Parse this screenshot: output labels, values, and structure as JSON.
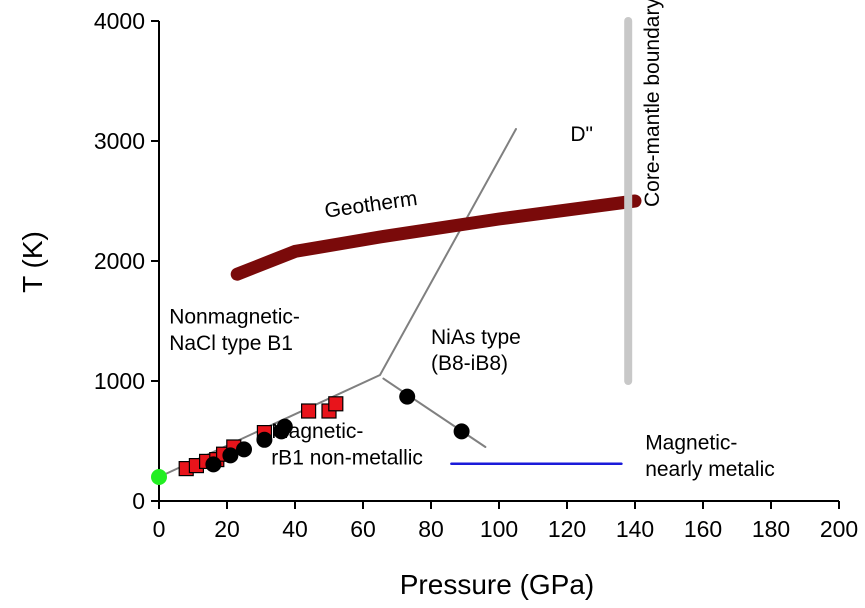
{
  "chart_data": {
    "type": "scatter",
    "title": "",
    "xlabel": "Pressure (GPa)",
    "ylabel": "T (K)",
    "xlim": [
      0,
      200
    ],
    "ylim": [
      0,
      4000
    ],
    "xticks": [
      "0",
      "20",
      "40",
      "60",
      "80",
      "100",
      "120",
      "140",
      "160",
      "180",
      "200"
    ],
    "yticks": [
      "0",
      "1000",
      "2000",
      "3000",
      "4000"
    ],
    "grid": false,
    "series": [
      {
        "marker": "square",
        "color": "#e8141b",
        "points": [
          [
            8,
            270
          ],
          [
            11,
            295
          ],
          [
            14,
            330
          ],
          [
            17,
            345
          ],
          [
            19,
            390
          ],
          [
            22,
            450
          ],
          [
            31,
            570
          ],
          [
            44,
            750
          ],
          [
            50,
            750
          ],
          [
            52,
            810
          ]
        ]
      },
      {
        "marker": "circle",
        "color": "#000000",
        "points": [
          [
            16,
            305
          ],
          [
            21,
            380
          ],
          [
            25,
            430
          ],
          [
            31,
            510
          ],
          [
            36,
            580
          ],
          [
            37,
            620
          ],
          [
            73,
            870
          ],
          [
            89,
            580
          ]
        ]
      },
      {
        "marker": "circle",
        "color": "#22ee22",
        "points": [
          [
            0,
            200
          ]
        ]
      }
    ],
    "curves": [
      {
        "kind": "phase-boundary",
        "color": "#808080",
        "width": 2,
        "points": [
          [
            0,
            200
          ],
          [
            65,
            1050
          ],
          [
            105,
            3100
          ]
        ]
      },
      {
        "kind": "phase-boundary",
        "color": "#808080",
        "width": 2,
        "points": [
          [
            66,
            1020
          ],
          [
            96,
            450
          ]
        ]
      },
      {
        "kind": "geotherm",
        "color": "#7a0a0a",
        "width": 13,
        "points": [
          [
            23,
            1890
          ],
          [
            40,
            2080
          ],
          [
            65,
            2200
          ],
          [
            100,
            2350
          ],
          [
            140,
            2500
          ]
        ]
      },
      {
        "kind": "core-mantle-boundary",
        "color": "#c8c8c8",
        "width": 8,
        "points": [
          [
            138,
            4000
          ],
          [
            138,
            1000
          ]
        ]
      },
      {
        "kind": "magnetic-boundary",
        "color": "#1a1ad9",
        "width": 2.5,
        "points": [
          [
            86,
            310
          ],
          [
            136,
            310
          ]
        ]
      }
    ],
    "annotations": [
      {
        "text": "Geotherm",
        "x": 49,
        "y": 2360,
        "rotate": -8
      },
      {
        "text": "D\"",
        "x": 121,
        "y": 3000
      },
      {
        "text": "Core-mantle boundary",
        "x": 147,
        "y": 2450,
        "rotate": -90
      },
      {
        "text": "Nonmagnetic-",
        "x": 3,
        "y": 1480
      },
      {
        "text": "NaCl type B1",
        "x": 3,
        "y": 1260
      },
      {
        "text": "NiAs type",
        "x": 80,
        "y": 1310
      },
      {
        "text": "(B8-iB8)",
        "x": 80,
        "y": 1090
      },
      {
        "text": "Magnetic-",
        "x": 33,
        "y": 525
      },
      {
        "text": "rB1 non-metallic",
        "x": 33,
        "y": 305
      },
      {
        "text": "Magnetic-",
        "x": 143,
        "y": 430
      },
      {
        "text": "nearly metalic",
        "x": 143,
        "y": 210
      }
    ]
  }
}
